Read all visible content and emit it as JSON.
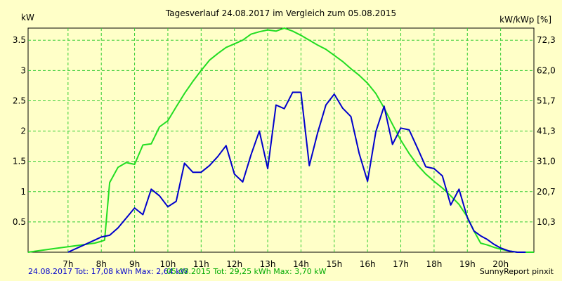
{
  "chart_data": {
    "type": "line",
    "title": "Tagesverlauf 24.08.2017 im Vergleich zum 05.08.2015",
    "ylabel_left": "kW",
    "ylabel_right": "kW/kWp [%]",
    "xlim": [
      5.8,
      21.0
    ],
    "ylim": [
      0,
      3.7
    ],
    "grid": true,
    "x_ticks": [
      {
        "value": 7,
        "label": "7h"
      },
      {
        "value": 8,
        "label": "8h"
      },
      {
        "value": 9,
        "label": "9h"
      },
      {
        "value": 10,
        "label": "10h"
      },
      {
        "value": 11,
        "label": "11h"
      },
      {
        "value": 12,
        "label": "12h"
      },
      {
        "value": 13,
        "label": "13h"
      },
      {
        "value": 14,
        "label": "14h"
      },
      {
        "value": 15,
        "label": "15h"
      },
      {
        "value": 16,
        "label": "16h"
      },
      {
        "value": 17,
        "label": "17h"
      },
      {
        "value": 18,
        "label": "18h"
      },
      {
        "value": 19,
        "label": "19h"
      },
      {
        "value": 20,
        "label": "20h"
      }
    ],
    "y_ticks_left": [
      {
        "value": 0.5,
        "label": "0.5"
      },
      {
        "value": 1.0,
        "label": "1"
      },
      {
        "value": 1.5,
        "label": "1.5"
      },
      {
        "value": 2.0,
        "label": "2"
      },
      {
        "value": 2.5,
        "label": "2.5"
      },
      {
        "value": 3.0,
        "label": "3"
      },
      {
        "value": 3.5,
        "label": "3.5"
      }
    ],
    "y_ticks_right": [
      {
        "value": 0.5,
        "label": "10,3"
      },
      {
        "value": 1.0,
        "label": "20,7"
      },
      {
        "value": 1.5,
        "label": "31,0"
      },
      {
        "value": 2.0,
        "label": "41,3"
      },
      {
        "value": 2.5,
        "label": "51,7"
      },
      {
        "value": 3.0,
        "label": "62,0"
      },
      {
        "value": 3.5,
        "label": "72,3"
      }
    ],
    "series": [
      {
        "color": "#22dd22",
        "x": [
          5.8,
          6.2,
          6.6,
          7.0,
          7.4,
          7.8,
          8.0,
          8.1,
          8.25,
          8.5,
          8.75,
          9.0,
          9.25,
          9.5,
          9.75,
          10.0,
          10.25,
          10.5,
          10.75,
          11.0,
          11.25,
          11.5,
          11.75,
          12.0,
          12.25,
          12.5,
          12.75,
          13.0,
          13.25,
          13.5,
          13.75,
          14.0,
          14.25,
          14.5,
          14.75,
          15.0,
          15.25,
          15.5,
          15.75,
          16.0,
          16.25,
          16.5,
          16.75,
          17.0,
          17.25,
          17.5,
          17.75,
          18.0,
          18.25,
          18.5,
          18.75,
          19.0,
          19.2,
          19.4,
          19.6,
          19.8,
          20.0,
          20.25,
          20.5,
          20.75,
          21.0
        ],
        "y": [
          0.0,
          0.03,
          0.06,
          0.09,
          0.12,
          0.15,
          0.18,
          0.2,
          1.15,
          1.4,
          1.48,
          1.45,
          1.77,
          1.79,
          2.07,
          2.17,
          2.4,
          2.62,
          2.82,
          3.0,
          3.17,
          3.28,
          3.38,
          3.44,
          3.5,
          3.6,
          3.64,
          3.67,
          3.65,
          3.7,
          3.65,
          3.58,
          3.5,
          3.42,
          3.35,
          3.25,
          3.15,
          3.03,
          2.92,
          2.79,
          2.62,
          2.38,
          2.11,
          1.85,
          1.63,
          1.44,
          1.29,
          1.17,
          1.06,
          0.93,
          0.79,
          0.58,
          0.35,
          0.15,
          0.12,
          0.08,
          0.05,
          0.02,
          0.0,
          0.0,
          0.0
        ]
      },
      {
        "color": "#0000cc",
        "x": [
          7.0,
          7.8,
          8.0,
          8.25,
          8.5,
          9.0,
          9.25,
          9.5,
          9.75,
          10.0,
          10.25,
          10.5,
          10.75,
          11.0,
          11.25,
          11.5,
          11.75,
          12.0,
          12.25,
          12.5,
          12.75,
          13.0,
          13.25,
          13.5,
          13.75,
          14.0,
          14.25,
          14.5,
          14.75,
          15.0,
          15.25,
          15.5,
          15.75,
          16.0,
          16.25,
          16.5,
          16.75,
          17.0,
          17.25,
          17.5,
          17.75,
          18.0,
          18.25,
          18.5,
          18.75,
          19.0,
          19.2,
          19.4,
          19.6,
          19.8,
          20.0,
          20.25,
          20.5,
          20.75
        ],
        "y": [
          0.0,
          0.2,
          0.25,
          0.28,
          0.4,
          0.73,
          0.62,
          1.04,
          0.93,
          0.75,
          0.84,
          1.47,
          1.32,
          1.32,
          1.43,
          1.58,
          1.76,
          1.29,
          1.16,
          1.61,
          2.0,
          1.38,
          2.43,
          2.37,
          2.64,
          2.64,
          1.43,
          1.97,
          2.43,
          2.61,
          2.38,
          2.24,
          1.63,
          1.17,
          1.99,
          2.41,
          1.78,
          2.05,
          2.02,
          1.72,
          1.41,
          1.38,
          1.26,
          0.78,
          1.04,
          0.57,
          0.35,
          0.27,
          0.21,
          0.13,
          0.07,
          0.02,
          0.0,
          0.0
        ]
      }
    ]
  },
  "footer": {
    "blue_text": "24.08.2017 Tot: 17,08 kWh Max: 2,64 kW",
    "green_text": "05.08.2015 Tot: 29,25 kWh Max: 3,70 kW",
    "credit": "SunnyReport pinxit"
  }
}
